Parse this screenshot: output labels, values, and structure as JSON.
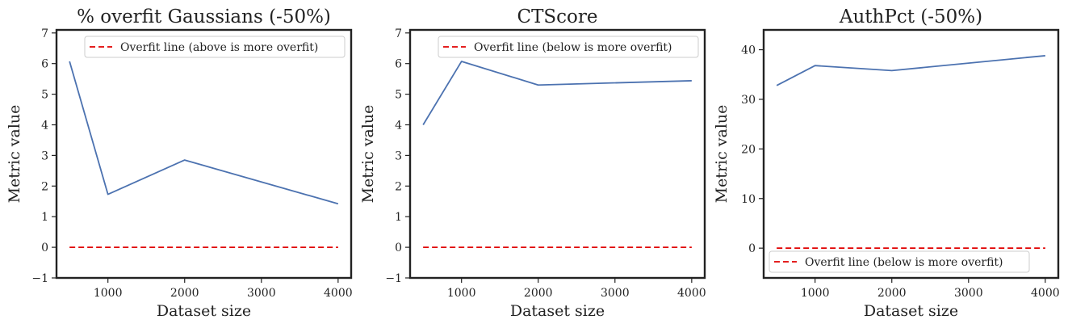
{
  "chart_data": [
    {
      "type": "line",
      "title": "% overfit Gaussians (-50%)",
      "xlabel": "Dataset size",
      "ylabel": "Metric value",
      "xlim": [
        330,
        4170
      ],
      "ylim": [
        -1,
        7.1
      ],
      "xticks": [
        1000,
        2000,
        3000,
        4000
      ],
      "yticks": [
        -1,
        0,
        1,
        2,
        3,
        4,
        5,
        6,
        7
      ],
      "grid": false,
      "legend_position": "upper right",
      "series": [
        {
          "name": "",
          "x": [
            500,
            1000,
            2000,
            4000
          ],
          "y": [
            6.07,
            1.73,
            2.85,
            1.42
          ],
          "color": "#4c72b0",
          "style": "solid"
        },
        {
          "name": "Overfit line (above is more overfit)",
          "x": [
            500,
            4000
          ],
          "y": [
            0,
            0
          ],
          "color": "#e00000",
          "style": "dashed"
        }
      ]
    },
    {
      "type": "line",
      "title": "CTScore",
      "xlabel": "Dataset size",
      "ylabel": "Metric value",
      "xlim": [
        330,
        4170
      ],
      "ylim": [
        -1,
        7.1
      ],
      "xticks": [
        1000,
        2000,
        3000,
        4000
      ],
      "yticks": [
        -1,
        0,
        1,
        2,
        3,
        4,
        5,
        6,
        7
      ],
      "grid": false,
      "legend_position": "upper right",
      "series": [
        {
          "name": "",
          "x": [
            500,
            1000,
            2000,
            4000
          ],
          "y": [
            4.0,
            6.07,
            5.3,
            5.44
          ],
          "color": "#4c72b0",
          "style": "solid"
        },
        {
          "name": "Overfit line (below is more overfit)",
          "x": [
            500,
            4000
          ],
          "y": [
            0,
            0
          ],
          "color": "#e00000",
          "style": "dashed"
        }
      ]
    },
    {
      "type": "line",
      "title": "AuthPct (-50%)",
      "xlabel": "Dataset size",
      "ylabel": "Metric value",
      "xlim": [
        330,
        4170
      ],
      "ylim": [
        -6,
        44
      ],
      "xticks": [
        1000,
        2000,
        3000,
        4000
      ],
      "yticks": [
        0,
        10,
        20,
        30,
        40
      ],
      "grid": false,
      "legend_position": "lower left",
      "series": [
        {
          "name": "",
          "x": [
            500,
            1000,
            2000,
            4000
          ],
          "y": [
            32.8,
            36.8,
            35.8,
            38.8
          ],
          "color": "#4c72b0",
          "style": "solid"
        },
        {
          "name": "Overfit line (below is more overfit)",
          "x": [
            500,
            4000
          ],
          "y": [
            0,
            0
          ],
          "color": "#e00000",
          "style": "dashed"
        }
      ]
    }
  ]
}
